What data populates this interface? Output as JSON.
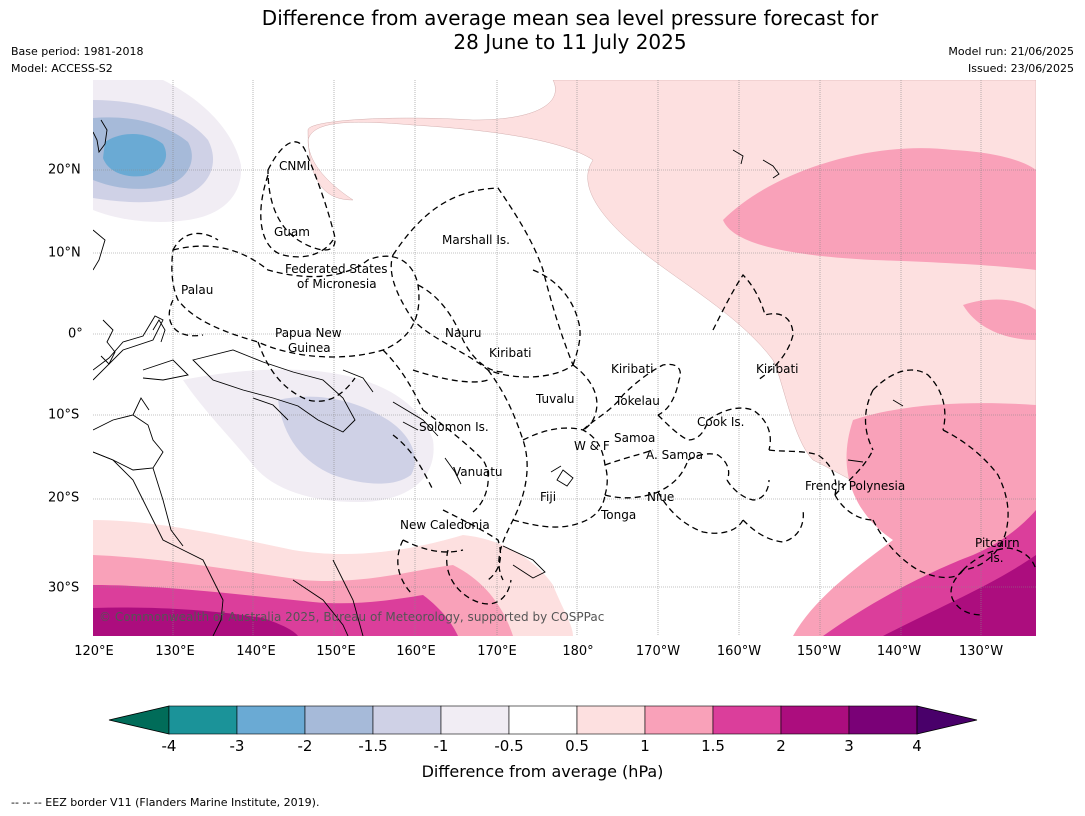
{
  "header": {
    "title_line1": "Difference from average mean sea level pressure forecast for",
    "title_line2": "28 June to 11 July 2025",
    "base_period": "Base period: 1981-2018",
    "model": "Model: ACCESS-S2",
    "model_run": "Model run: 21/06/2025",
    "issued": "Issued: 23/06/2025"
  },
  "axes": {
    "lon_ticks": [
      "120°E",
      "130°E",
      "140°E",
      "150°E",
      "160°E",
      "170°E",
      "180°",
      "170°W",
      "160°W",
      "150°W",
      "140°W",
      "130°W"
    ],
    "lat_ticks": [
      "20°N",
      "10°N",
      "0°",
      "10°S",
      "20°S",
      "30°S"
    ]
  },
  "places": [
    {
      "name": "CNMI"
    },
    {
      "name": "Guam"
    },
    {
      "name": "Marshall Is."
    },
    {
      "name": "Federated States"
    },
    {
      "name": "of Micronesia"
    },
    {
      "name": "Palau"
    },
    {
      "name": "Papua New"
    },
    {
      "name": "Guinea"
    },
    {
      "name": "Nauru"
    },
    {
      "name": "Kiribati"
    },
    {
      "name": "Kiribati"
    },
    {
      "name": "Kiribati"
    },
    {
      "name": "Tuvalu"
    },
    {
      "name": "Tokelau"
    },
    {
      "name": "Solomon Is."
    },
    {
      "name": "Samoa"
    },
    {
      "name": "W & F"
    },
    {
      "name": "A. Samoa"
    },
    {
      "name": "Cook Is."
    },
    {
      "name": "Vanuatu"
    },
    {
      "name": "Fiji"
    },
    {
      "name": "Niue"
    },
    {
      "name": "Tonga"
    },
    {
      "name": "New Caledonia"
    },
    {
      "name": "French Polynesia"
    },
    {
      "name": "Pitcairn"
    },
    {
      "name": "Is."
    }
  ],
  "copyright": "© Commonwealth of Australia 2025, Bureau of Meteorology, supported by COSPPac",
  "colorbar": {
    "label": "Difference from average (hPa)",
    "ticks": [
      "-4",
      "-3",
      "-2",
      "-1.5",
      "-1",
      "-0.5",
      "0.5",
      "1",
      "1.5",
      "2",
      "3",
      "4"
    ],
    "colors": [
      "#1b9399",
      "#6aaad4",
      "#a6bad9",
      "#cfd1e6",
      "#f1edf4",
      "#ffffff",
      "#fde0e0",
      "#f9a1b9",
      "#db3e9b",
      "#ac0d7e",
      "#7a0177"
    ],
    "under_color": "#016c59",
    "over_color": "#49006a"
  },
  "footer": "--  --  -- EEZ border V11 (Flanders Marine Institute, 2019)."
}
